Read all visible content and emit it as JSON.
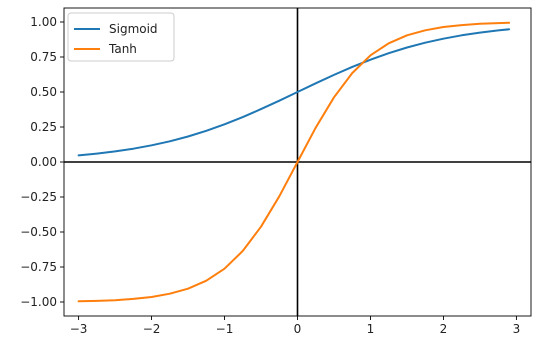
{
  "chart_data": {
    "type": "line",
    "title": "",
    "xlabel": "",
    "ylabel": "",
    "xlim": [
      -3.2,
      3.2
    ],
    "ylim": [
      -1.1,
      1.1
    ],
    "x_ticks": [
      -3,
      -2,
      -1,
      0,
      1,
      2,
      3
    ],
    "x_tick_labels": [
      "−3",
      "−2",
      "−1",
      "0",
      "1",
      "2",
      "3"
    ],
    "y_ticks": [
      1.0,
      0.75,
      0.5,
      0.25,
      0.0,
      -0.25,
      -0.5,
      -0.75,
      -1.0
    ],
    "y_tick_labels": [
      "1.00",
      "0.75",
      "0.50",
      "0.25",
      "0.00",
      "−0.25",
      "−0.50",
      "−0.75",
      "−1.00"
    ],
    "grid": false,
    "reference_lines": {
      "x": 0,
      "y": 0
    },
    "legend": {
      "position": "top-left"
    },
    "x": [
      -3.0,
      -2.75,
      -2.5,
      -2.25,
      -2.0,
      -1.75,
      -1.5,
      -1.25,
      -1.0,
      -0.75,
      -0.5,
      -0.25,
      0.0,
      0.25,
      0.5,
      0.75,
      1.0,
      1.25,
      1.5,
      1.75,
      2.0,
      2.25,
      2.5,
      2.75,
      2.9
    ],
    "series": [
      {
        "name": "Sigmoid",
        "color": "#1f77b4",
        "values": [
          0.047,
          0.06,
          0.076,
          0.095,
          0.119,
          0.148,
          0.182,
          0.223,
          0.269,
          0.321,
          0.378,
          0.438,
          0.5,
          0.562,
          0.622,
          0.679,
          0.731,
          0.777,
          0.818,
          0.852,
          0.881,
          0.905,
          0.924,
          0.94,
          0.948
        ]
      },
      {
        "name": "Tanh",
        "color": "#ff7f0e",
        "values": [
          -0.995,
          -0.992,
          -0.987,
          -0.978,
          -0.964,
          -0.941,
          -0.905,
          -0.848,
          -0.762,
          -0.635,
          -0.462,
          -0.245,
          0.0,
          0.245,
          0.462,
          0.635,
          0.762,
          0.848,
          0.905,
          0.941,
          0.964,
          0.978,
          0.987,
          0.992,
          0.994
        ]
      }
    ]
  }
}
